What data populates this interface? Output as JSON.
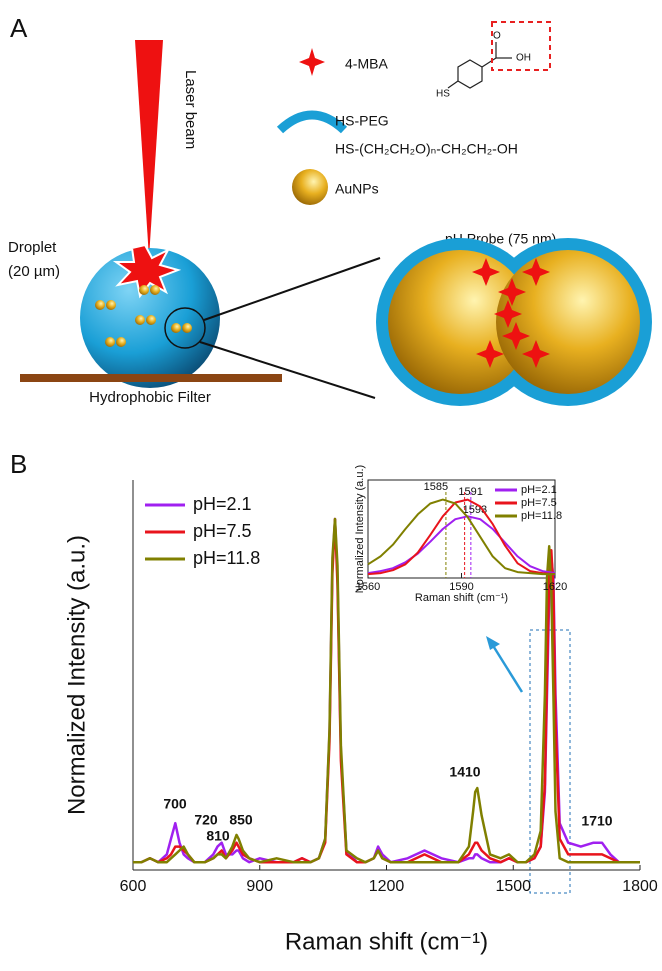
{
  "panel_a": {
    "label": "A",
    "laser": "Laser beam",
    "droplet": "Droplet",
    "droplet_size": "(20 µm)",
    "filter": "Hydrophobic Filter",
    "legend": [
      {
        "label": "4-MBA"
      },
      {
        "label": "HS-PEG",
        "formula": "HS-(CH₂CH₂O)ₙ-CH₂CH₂-OH"
      },
      {
        "label": "AuNPs"
      }
    ],
    "structure": {
      "hs": "HS",
      "o": "O",
      "oh": "OH"
    },
    "probe": "pH Probe (75 nm)"
  },
  "panel_b": {
    "label": "B"
  },
  "chart_data": [
    {
      "type": "line",
      "xlabel": "Raman shift (cm⁻¹)",
      "ylabel": "Normalized Intensity (a.u.)",
      "legend": "top-left",
      "xlim": [
        600,
        1800
      ],
      "xticks": [
        600,
        900,
        1200,
        1500,
        1800
      ],
      "ylim": [
        0,
        1
      ],
      "annotations": [
        "700",
        "720",
        "810",
        "850",
        "1410",
        "1710"
      ],
      "x": [
        600,
        620,
        640,
        660,
        680,
        690,
        700,
        710,
        720,
        730,
        745,
        770,
        790,
        800,
        810,
        820,
        835,
        845,
        850,
        860,
        875,
        900,
        940,
        980,
        1000,
        1020,
        1040,
        1055,
        1065,
        1072,
        1078,
        1084,
        1092,
        1105,
        1130,
        1150,
        1170,
        1180,
        1190,
        1210,
        1250,
        1290,
        1330,
        1370,
        1395,
        1405,
        1410,
        1415,
        1425,
        1445,
        1470,
        1490,
        1510,
        1530,
        1550,
        1565,
        1575,
        1580,
        1585,
        1590,
        1595,
        1600,
        1610,
        1630,
        1660,
        1690,
        1710,
        1730,
        1750,
        1780,
        1800
      ],
      "series": [
        {
          "name": "pH=2.1",
          "color": "#a020f0",
          "values": [
            0.02,
            0.02,
            0.03,
            0.02,
            0.04,
            0.08,
            0.12,
            0.07,
            0.04,
            0.03,
            0.02,
            0.02,
            0.04,
            0.06,
            0.07,
            0.04,
            0.04,
            0.05,
            0.05,
            0.03,
            0.02,
            0.03,
            0.02,
            0.02,
            0.03,
            0.02,
            0.03,
            0.08,
            0.35,
            0.78,
            0.9,
            0.75,
            0.3,
            0.05,
            0.02,
            0.02,
            0.03,
            0.06,
            0.04,
            0.02,
            0.03,
            0.05,
            0.03,
            0.02,
            0.03,
            0.03,
            0.04,
            0.04,
            0.03,
            0.02,
            0.02,
            0.03,
            0.02,
            0.02,
            0.03,
            0.06,
            0.2,
            0.45,
            0.7,
            0.8,
            0.75,
            0.45,
            0.12,
            0.07,
            0.06,
            0.07,
            0.07,
            0.04,
            0.02,
            0.02,
            0.02
          ]
        },
        {
          "name": "pH=7.5",
          "color": "#e8141c",
          "values": [
            0.02,
            0.02,
            0.03,
            0.02,
            0.03,
            0.04,
            0.06,
            0.06,
            0.05,
            0.04,
            0.02,
            0.02,
            0.03,
            0.04,
            0.05,
            0.03,
            0.05,
            0.07,
            0.06,
            0.04,
            0.03,
            0.02,
            0.02,
            0.02,
            0.03,
            0.02,
            0.03,
            0.07,
            0.33,
            0.76,
            0.9,
            0.73,
            0.28,
            0.04,
            0.02,
            0.02,
            0.03,
            0.05,
            0.03,
            0.02,
            0.02,
            0.04,
            0.02,
            0.02,
            0.04,
            0.06,
            0.07,
            0.07,
            0.05,
            0.03,
            0.02,
            0.03,
            0.02,
            0.02,
            0.03,
            0.06,
            0.22,
            0.5,
            0.75,
            0.82,
            0.72,
            0.38,
            0.08,
            0.04,
            0.04,
            0.04,
            0.04,
            0.03,
            0.02,
            0.02,
            0.02
          ]
        },
        {
          "name": "pH=11.8",
          "color": "#808000",
          "values": [
            0.02,
            0.02,
            0.03,
            0.02,
            0.02,
            0.03,
            0.04,
            0.05,
            0.06,
            0.04,
            0.02,
            0.02,
            0.03,
            0.04,
            0.04,
            0.03,
            0.06,
            0.09,
            0.08,
            0.05,
            0.03,
            0.02,
            0.03,
            0.02,
            0.02,
            0.02,
            0.03,
            0.08,
            0.36,
            0.8,
            0.9,
            0.78,
            0.32,
            0.05,
            0.03,
            0.02,
            0.03,
            0.05,
            0.03,
            0.02,
            0.02,
            0.02,
            0.02,
            0.02,
            0.06,
            0.15,
            0.2,
            0.21,
            0.14,
            0.04,
            0.03,
            0.04,
            0.02,
            0.02,
            0.04,
            0.1,
            0.45,
            0.75,
            0.83,
            0.72,
            0.45,
            0.15,
            0.03,
            0.02,
            0.02,
            0.02,
            0.02,
            0.02,
            0.02,
            0.02,
            0.02
          ]
        }
      ]
    },
    {
      "type": "line",
      "xlabel": "Raman shift (cm⁻¹)",
      "ylabel": "Normalized Intensity (a.u.)",
      "legend": "top-right",
      "xlim": [
        1560,
        1620
      ],
      "xticks": [
        1560,
        1590,
        1620
      ],
      "ylim": [
        0,
        1
      ],
      "x": [
        1560,
        1564,
        1568,
        1572,
        1576,
        1580,
        1584,
        1588,
        1592,
        1596,
        1600,
        1604,
        1608,
        1612,
        1616,
        1620
      ],
      "markers": [
        1585,
        1591,
        1593
      ],
      "series": [
        {
          "name": "pH=2.1",
          "color": "#a020f0",
          "values": [
            0.05,
            0.07,
            0.1,
            0.16,
            0.25,
            0.37,
            0.5,
            0.6,
            0.63,
            0.6,
            0.5,
            0.36,
            0.22,
            0.12,
            0.07,
            0.05
          ]
        },
        {
          "name": "pH=7.5",
          "color": "#e8141c",
          "values": [
            0.04,
            0.05,
            0.08,
            0.14,
            0.26,
            0.44,
            0.63,
            0.77,
            0.8,
            0.73,
            0.55,
            0.33,
            0.15,
            0.07,
            0.05,
            0.04
          ]
        },
        {
          "name": "pH=11.8",
          "color": "#808000",
          "values": [
            0.14,
            0.22,
            0.34,
            0.5,
            0.65,
            0.76,
            0.8,
            0.76,
            0.62,
            0.42,
            0.22,
            0.1,
            0.06,
            0.05,
            0.04,
            0.04
          ]
        }
      ]
    }
  ]
}
